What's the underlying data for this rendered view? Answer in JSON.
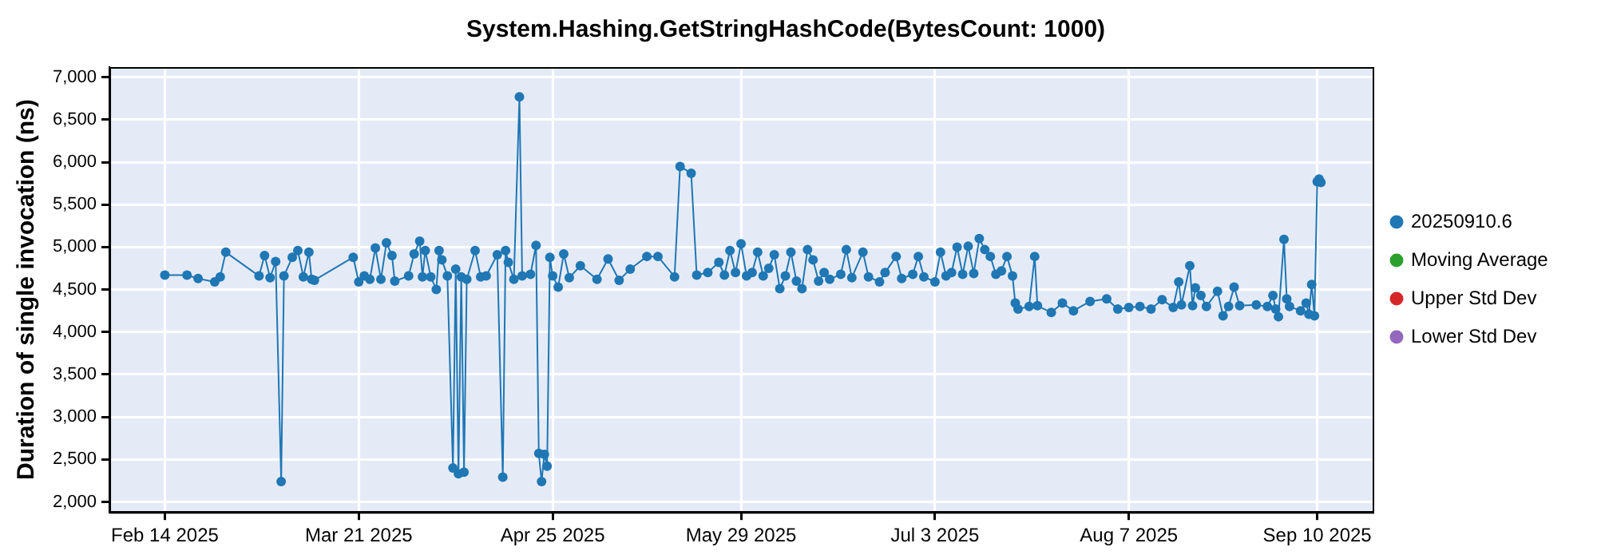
{
  "chart_data": {
    "type": "line",
    "title": "System.Hashing.GetStringHashCode(BytesCount: 1000)",
    "ylabel": "Duration of single invocation (ns)",
    "xlim": [
      "2025-02-04",
      "2025-09-20"
    ],
    "xticks": [
      {
        "value": "2025-02-14",
        "label": "Feb 14 2025"
      },
      {
        "value": "2025-03-21",
        "label": "Mar 21 2025"
      },
      {
        "value": "2025-04-25",
        "label": "Apr 25 2025"
      },
      {
        "value": "2025-05-29",
        "label": "May 29 2025"
      },
      {
        "value": "2025-07-03",
        "label": "Jul 3 2025"
      },
      {
        "value": "2025-08-07",
        "label": "Aug 7 2025"
      },
      {
        "value": "2025-09-10",
        "label": "Sep 10 2025"
      }
    ],
    "ylim": [
      1880,
      7120
    ],
    "yticks": [
      {
        "value": 2000,
        "label": "2,000"
      },
      {
        "value": 2500,
        "label": "2,500"
      },
      {
        "value": 3000,
        "label": "3,000"
      },
      {
        "value": 3500,
        "label": "3,500"
      },
      {
        "value": 4000,
        "label": "4,000"
      },
      {
        "value": 4500,
        "label": "4,500"
      },
      {
        "value": 5000,
        "label": "5,000"
      },
      {
        "value": 5500,
        "label": "5,500"
      },
      {
        "value": 6000,
        "label": "6,000"
      },
      {
        "value": 6500,
        "label": "6,500"
      },
      {
        "value": 7000,
        "label": "7,000"
      }
    ],
    "grid": true,
    "legend": "right",
    "marker": "circle",
    "line_style": "solid",
    "series": [
      {
        "name": "20250910.6",
        "color": "#1f77b4",
        "x": [
          "2025-02-14",
          "2025-02-18",
          "2025-02-20",
          "2025-02-23",
          "2025-02-24",
          "2025-02-25",
          "2025-03-03",
          "2025-03-04",
          "2025-03-05",
          "2025-03-06",
          "2025-03-07",
          "2025-03-07T12:00",
          "2025-03-09",
          "2025-03-10",
          "2025-03-11",
          "2025-03-12",
          "2025-03-12T12:00",
          "2025-03-13",
          "2025-03-20",
          "2025-03-21",
          "2025-03-22",
          "2025-03-23",
          "2025-03-24",
          "2025-03-25",
          "2025-03-26",
          "2025-03-27",
          "2025-03-27T12:00",
          "2025-03-30",
          "2025-03-31",
          "2025-04-01",
          "2025-04-01T12:00",
          "2025-04-02",
          "2025-04-03",
          "2025-04-04",
          "2025-04-04T12:00",
          "2025-04-05",
          "2025-04-06",
          "2025-04-07",
          "2025-04-07T12:00",
          "2025-04-08",
          "2025-04-08T12:00",
          "2025-04-09",
          "2025-04-09T12:00",
          "2025-04-11",
          "2025-04-12",
          "2025-04-13",
          "2025-04-15",
          "2025-04-16",
          "2025-04-16T12:00",
          "2025-04-17",
          "2025-04-18",
          "2025-04-19",
          "2025-04-19T12:00",
          "2025-04-21",
          "2025-04-22",
          "2025-04-22T12:00",
          "2025-04-23",
          "2025-04-23T12:00",
          "2025-04-24",
          "2025-04-24T12:00",
          "2025-04-25",
          "2025-04-26",
          "2025-04-27",
          "2025-04-28",
          "2025-04-30",
          "2025-05-03",
          "2025-05-05",
          "2025-05-07",
          "2025-05-09",
          "2025-05-12",
          "2025-05-14",
          "2025-05-17",
          "2025-05-18",
          "2025-05-20",
          "2025-05-21",
          "2025-05-23",
          "2025-05-25",
          "2025-05-26",
          "2025-05-27",
          "2025-05-28",
          "2025-05-29",
          "2025-05-30",
          "2025-05-31",
          "2025-06-01",
          "2025-06-02",
          "2025-06-03",
          "2025-06-04",
          "2025-06-05",
          "2025-06-06",
          "2025-06-07",
          "2025-06-08",
          "2025-06-09",
          "2025-06-10",
          "2025-06-11",
          "2025-06-12",
          "2025-06-13",
          "2025-06-14",
          "2025-06-16",
          "2025-06-17",
          "2025-06-18",
          "2025-06-20",
          "2025-06-21",
          "2025-06-23",
          "2025-06-24",
          "2025-06-26",
          "2025-06-27",
          "2025-06-29",
          "2025-06-30",
          "2025-07-01",
          "2025-07-03",
          "2025-07-04",
          "2025-07-05",
          "2025-07-06",
          "2025-07-07",
          "2025-07-08",
          "2025-07-09",
          "2025-07-10",
          "2025-07-11",
          "2025-07-12",
          "2025-07-13",
          "2025-07-14",
          "2025-07-15",
          "2025-07-16",
          "2025-07-17",
          "2025-07-17T12:00",
          "2025-07-18",
          "2025-07-20",
          "2025-07-21",
          "2025-07-21T12:00",
          "2025-07-24",
          "2025-07-26",
          "2025-07-28",
          "2025-07-31",
          "2025-08-03",
          "2025-08-05",
          "2025-08-07",
          "2025-08-09",
          "2025-08-11",
          "2025-08-13",
          "2025-08-15",
          "2025-08-16",
          "2025-08-16T12:00",
          "2025-08-18",
          "2025-08-18T12:00",
          "2025-08-19",
          "2025-08-20",
          "2025-08-21",
          "2025-08-23",
          "2025-08-24",
          "2025-08-25",
          "2025-08-26",
          "2025-08-27",
          "2025-08-30",
          "2025-09-01",
          "2025-09-02",
          "2025-09-02T12:00",
          "2025-09-03",
          "2025-09-04",
          "2025-09-04T12:00",
          "2025-09-05",
          "2025-09-07",
          "2025-09-08",
          "2025-09-08T12:00",
          "2025-09-09",
          "2025-09-09T12:00",
          "2025-09-10",
          "2025-09-10T08:00",
          "2025-09-10T16:00"
        ],
        "values": [
          4670,
          4670,
          4630,
          4590,
          4650,
          4940,
          4660,
          4900,
          4640,
          4830,
          2240,
          4660,
          4880,
          4960,
          4650,
          4940,
          4620,
          4610,
          4880,
          4590,
          4660,
          4620,
          4990,
          4620,
          5050,
          4900,
          4600,
          4660,
          4920,
          5070,
          4650,
          4960,
          4650,
          4500,
          4960,
          4850,
          4660,
          2400,
          4740,
          2330,
          4650,
          2350,
          4620,
          4960,
          4650,
          4660,
          4910,
          2290,
          4960,
          4820,
          4620,
          6770,
          4660,
          4680,
          5020,
          2570,
          2240,
          2560,
          2420,
          4880,
          4660,
          4530,
          4920,
          4640,
          4780,
          4620,
          4860,
          4610,
          4740,
          4890,
          4890,
          4650,
          5950,
          5870,
          4670,
          4700,
          4820,
          4670,
          4960,
          4700,
          5040,
          4660,
          4700,
          4940,
          4660,
          4750,
          4910,
          4510,
          4660,
          4940,
          4600,
          4510,
          4970,
          4850,
          4600,
          4700,
          4620,
          4680,
          4970,
          4640,
          4940,
          4650,
          4590,
          4700,
          4890,
          4630,
          4680,
          4890,
          4650,
          4590,
          4940,
          4660,
          4700,
          5000,
          4680,
          5010,
          4690,
          5100,
          4970,
          4890,
          4680,
          4720,
          4890,
          4660,
          4340,
          4270,
          4300,
          4890,
          4310,
          4230,
          4340,
          4250,
          4360,
          4390,
          4270,
          4290,
          4300,
          4270,
          4380,
          4290,
          4590,
          4320,
          4780,
          4310,
          4520,
          4430,
          4300,
          4480,
          4190,
          4300,
          4530,
          4310,
          4320,
          4300,
          4430,
          4270,
          4180,
          5090,
          4390,
          4300,
          4250,
          4340,
          4210,
          4560,
          4190,
          5770,
          5800,
          5760
        ]
      },
      {
        "name": "Moving Average",
        "color": "#2ca02c"
      },
      {
        "name": "Upper Std Dev",
        "color": "#d62728"
      },
      {
        "name": "Lower Std Dev",
        "color": "#9467bd"
      }
    ]
  }
}
